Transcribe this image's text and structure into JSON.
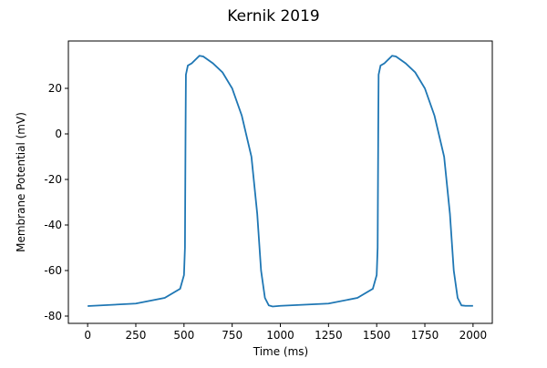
{
  "chart_data": {
    "type": "line",
    "title": "Kernik 2019",
    "xlabel": "Time (ms)",
    "ylabel": "Membrane Potential (mV)",
    "x": [
      0,
      250,
      400,
      480,
      500,
      505,
      508,
      510,
      520,
      540,
      580,
      600,
      650,
      700,
      750,
      800,
      850,
      880,
      900,
      920,
      940,
      960,
      1000,
      1250,
      1400,
      1480,
      1500,
      1505,
      1508,
      1510,
      1520,
      1540,
      1580,
      1600,
      1650,
      1700,
      1750,
      1800,
      1850,
      1880,
      1900,
      1920,
      1940,
      1960,
      2000
    ],
    "series": [
      {
        "name": "Membrane Potential",
        "color": "#1f77b4",
        "values": [
          -75.6,
          -74.5,
          -72,
          -68,
          -62,
          -50,
          0,
          26,
          30,
          31,
          34.3,
          34,
          31,
          27,
          20,
          8,
          -10,
          -35,
          -60,
          -72,
          -75.3,
          -75.8,
          -75.5,
          -74.5,
          -72,
          -68,
          -62,
          -50,
          0,
          26,
          30,
          31,
          34.3,
          34,
          31,
          27,
          20,
          8,
          -10,
          -35,
          -60,
          -72,
          -75.3,
          -75.5,
          -75.5
        ]
      }
    ],
    "xlim": [
      -100,
      2100
    ],
    "ylim": [
      -83.2,
      40.8
    ],
    "xticks": [
      0,
      250,
      500,
      750,
      1000,
      1250,
      1500,
      1750,
      2000
    ],
    "yticks": [
      -80,
      -60,
      -40,
      -20,
      0,
      20
    ]
  }
}
